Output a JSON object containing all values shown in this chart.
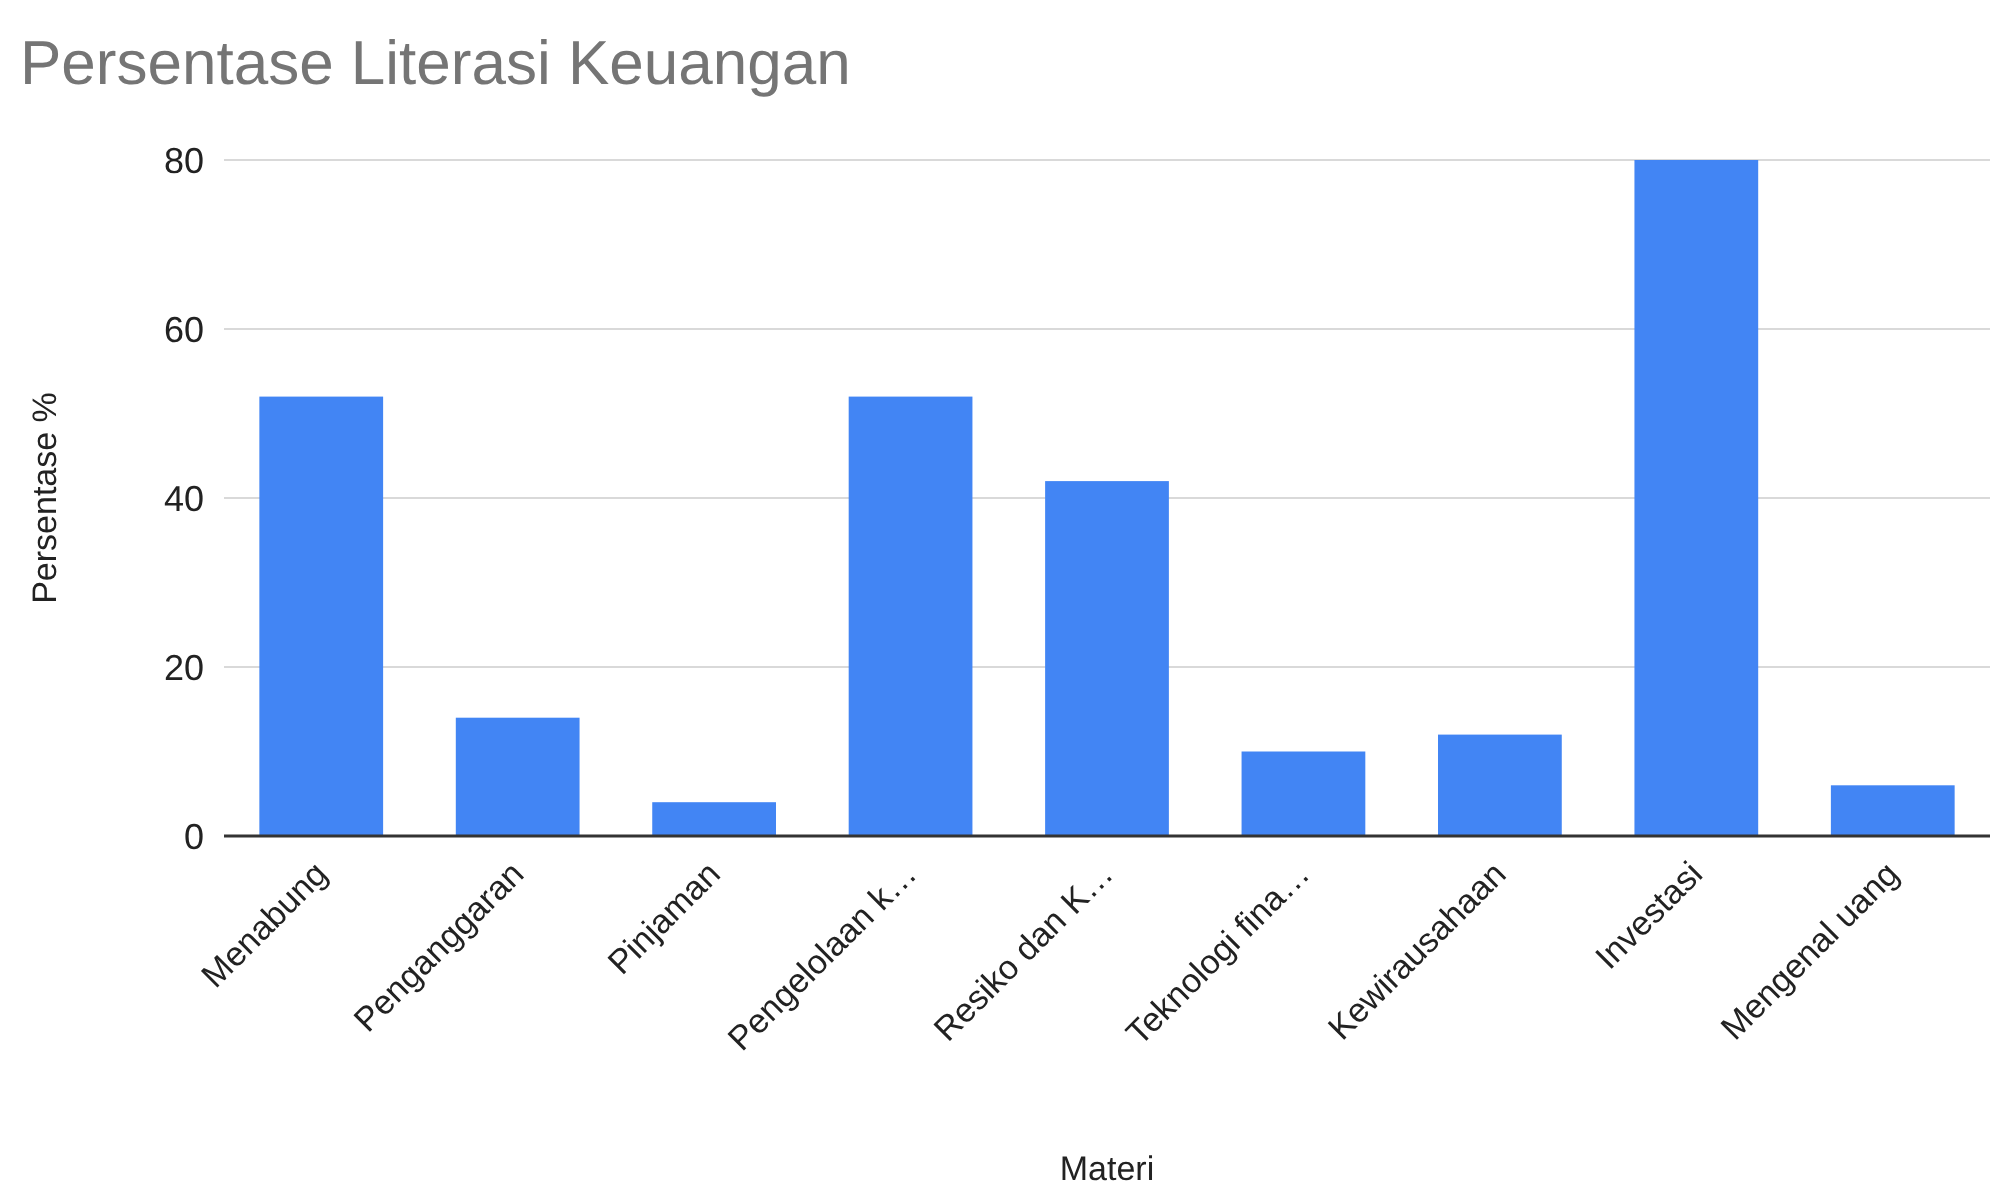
{
  "chart_data": {
    "type": "bar",
    "title": "Persentase Literasi Keuangan",
    "xlabel": "Materi",
    "ylabel": "Persentase %",
    "categories": [
      "Menabung",
      "Penganggaran",
      "Pinjaman",
      "Pengelolaan k…",
      "Resiko dan K…",
      "Teknologi fina…",
      "Kewirausahaan",
      "Investasi",
      "Mengenal uang"
    ],
    "values": [
      52,
      14,
      4,
      52,
      42,
      10,
      12,
      80,
      6
    ],
    "color": "#4285f4",
    "ylim": [
      0,
      80
    ],
    "yticks": [
      0,
      20,
      40,
      60,
      80
    ],
    "grid": "y"
  }
}
